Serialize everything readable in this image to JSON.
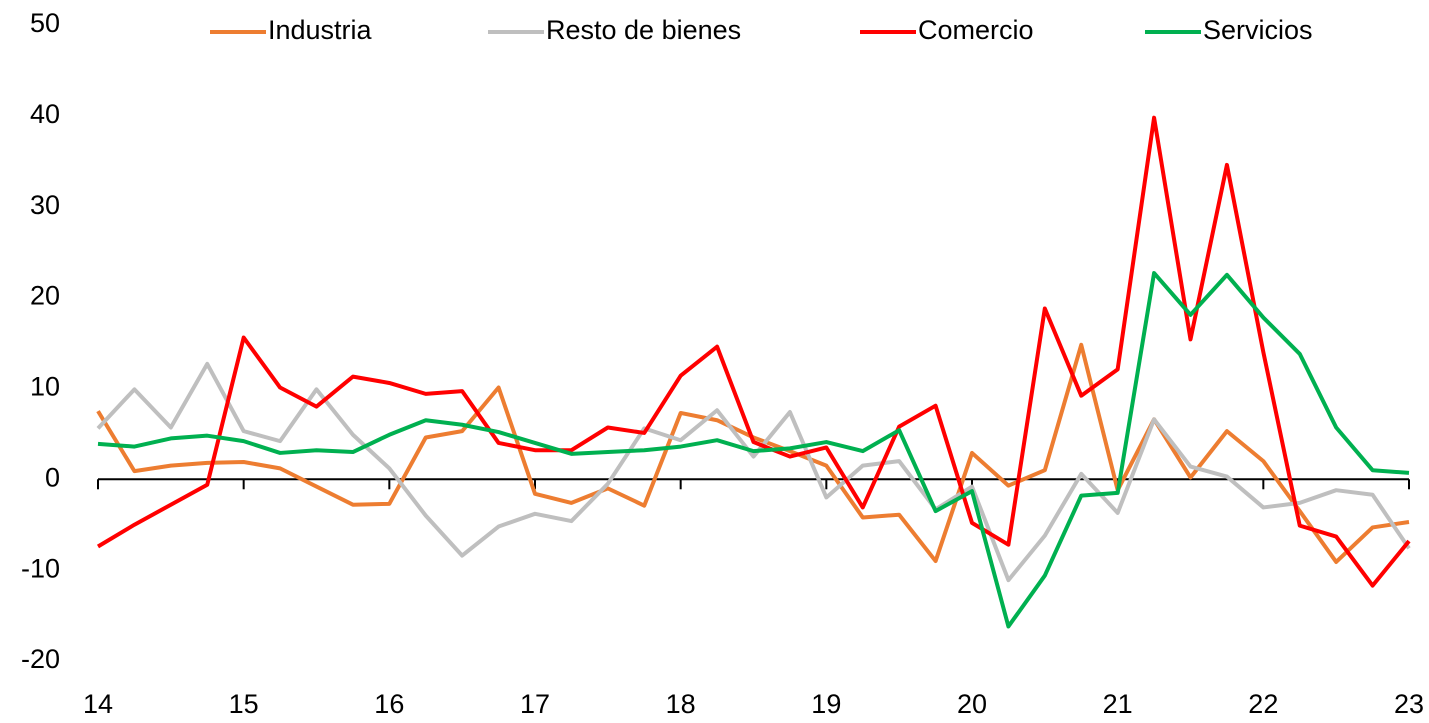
{
  "chart_data": {
    "type": "line",
    "x": [
      14,
      14.25,
      14.5,
      14.75,
      15,
      15.25,
      15.5,
      15.75,
      16,
      16.25,
      16.5,
      16.75,
      17,
      17.25,
      17.5,
      17.75,
      18,
      18.25,
      18.5,
      18.75,
      19,
      19.25,
      19.5,
      19.75,
      20,
      20.25,
      20.5,
      20.75,
      21,
      21.25,
      21.5,
      21.75,
      22,
      22.25,
      22.5,
      22.75,
      23
    ],
    "series": [
      {
        "name": "Industria",
        "color": "#ed7d31",
        "values": [
          7.5,
          0.9,
          1.5,
          1.8,
          1.9,
          1.2,
          -0.8,
          -2.8,
          -2.7,
          4.6,
          5.3,
          10.1,
          -1.6,
          -2.6,
          -1.0,
          -2.9,
          7.3,
          6.5,
          4.6,
          3.1,
          1.5,
          -4.2,
          -3.9,
          -9.0,
          2.9,
          -0.7,
          1.0,
          14.8,
          -1.2,
          6.6,
          0.2,
          5.3,
          2.0,
          -3.5,
          -9.1,
          -5.3,
          -4.7
        ]
      },
      {
        "name": "Resto de bienes",
        "color": "#bfbfbf",
        "values": [
          5.6,
          9.9,
          5.7,
          12.7,
          5.3,
          4.2,
          9.9,
          4.9,
          1.2,
          -4.0,
          -8.4,
          -5.2,
          -3.8,
          -4.6,
          -0.5,
          5.6,
          4.3,
          7.6,
          2.5,
          7.4,
          -2.0,
          1.5,
          2.0,
          -3.3,
          -0.8,
          -11.1,
          -6.2,
          0.6,
          -3.7,
          6.6,
          1.4,
          0.3,
          -3.1,
          -2.6,
          -1.2,
          -1.7,
          -7.6
        ]
      },
      {
        "name": "Comercio",
        "color": "#ff0000",
        "values": [
          -7.4,
          -5.0,
          -2.8,
          -0.6,
          15.6,
          10.1,
          8.0,
          11.3,
          10.6,
          9.4,
          9.7,
          4.0,
          3.2,
          3.2,
          5.7,
          5.1,
          11.4,
          14.6,
          4.1,
          2.5,
          3.5,
          -3.1,
          5.8,
          8.1,
          -4.8,
          -7.2,
          18.8,
          9.2,
          12.1,
          39.8,
          15.4,
          34.6,
          14.0,
          -5.1,
          -6.3,
          -11.7,
          -6.8
        ]
      },
      {
        "name": "Servicios",
        "color": "#00b050",
        "values": [
          3.9,
          3.6,
          4.5,
          4.8,
          4.2,
          2.9,
          3.2,
          3.0,
          4.9,
          6.5,
          6.0,
          5.2,
          4.0,
          2.8,
          3.0,
          3.2,
          3.6,
          4.3,
          3.1,
          3.4,
          4.1,
          3.1,
          5.4,
          -3.5,
          -1.3,
          -16.2,
          -10.6,
          -1.8,
          -1.5,
          22.7,
          18.1,
          22.5,
          17.8,
          13.8,
          5.7,
          1.0,
          0.7
        ]
      }
    ],
    "xlim": [
      14,
      23
    ],
    "xticks": [
      14,
      15,
      16,
      17,
      18,
      19,
      20,
      21,
      22,
      23
    ],
    "ylim": [
      -20,
      50
    ],
    "yticks": [
      -20,
      -10,
      0,
      10,
      20,
      30,
      40,
      50
    ],
    "legend": "top"
  }
}
